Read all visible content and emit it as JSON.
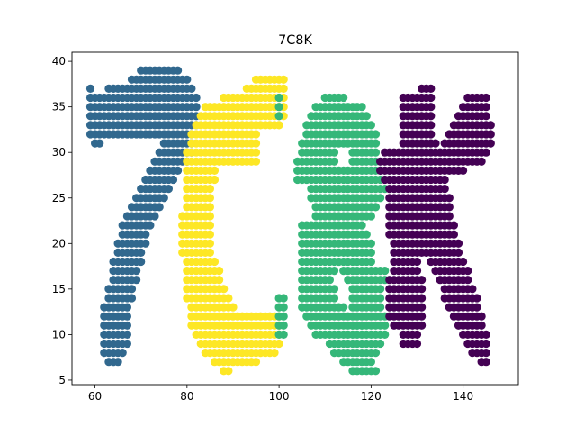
{
  "chart_data": {
    "type": "scatter",
    "title": "7C8K",
    "xlabel": "",
    "ylabel": "",
    "xlim": [
      55,
      152
    ],
    "ylim": [
      4.5,
      41
    ],
    "xticks": [
      60,
      80,
      100,
      120,
      140
    ],
    "yticks": [
      5,
      10,
      15,
      20,
      25,
      30,
      35,
      40
    ],
    "grid": false,
    "legend": "none",
    "series": [
      {
        "name": "7",
        "color": "#31688e",
        "rects": [
          [
            70,
            78,
            39,
            39
          ],
          [
            68,
            80,
            38,
            38
          ],
          [
            63,
            81,
            37,
            37
          ],
          [
            59,
            82,
            36,
            36
          ],
          [
            59,
            82,
            35,
            35
          ],
          [
            59,
            82,
            34,
            34
          ],
          [
            59,
            82,
            33,
            33
          ],
          [
            59,
            81,
            32,
            32
          ],
          [
            75,
            81,
            31,
            31
          ],
          [
            74,
            81,
            30,
            30
          ],
          [
            73,
            80,
            29,
            29
          ],
          [
            72,
            78,
            28,
            28
          ],
          [
            71,
            77,
            27,
            27
          ],
          [
            70,
            76,
            26,
            26
          ],
          [
            69,
            75,
            25,
            25
          ],
          [
            68,
            74,
            24,
            24
          ],
          [
            67,
            73,
            23,
            23
          ],
          [
            66,
            72,
            22,
            22
          ],
          [
            66,
            71,
            21,
            21
          ],
          [
            65,
            71,
            20,
            20
          ],
          [
            65,
            70,
            19,
            19
          ],
          [
            64,
            70,
            18,
            18
          ],
          [
            64,
            69,
            17,
            17
          ],
          [
            64,
            69,
            16,
            16
          ],
          [
            63,
            68,
            15,
            15
          ],
          [
            63,
            68,
            14,
            14
          ],
          [
            62,
            67,
            13,
            13
          ],
          [
            62,
            67,
            12,
            12
          ],
          [
            62,
            67,
            11,
            11
          ],
          [
            62,
            67,
            10,
            10
          ],
          [
            62,
            67,
            9,
            9
          ],
          [
            62,
            66,
            8,
            8
          ],
          [
            63,
            65,
            7,
            7
          ]
        ],
        "points": [
          [
            59,
            37
          ],
          [
            60,
            31
          ],
          [
            61,
            31
          ]
        ]
      },
      {
        "name": "C",
        "color": "#fde725",
        "rects": [
          [
            95,
            101,
            38,
            38
          ],
          [
            93,
            101,
            37,
            37
          ],
          [
            88,
            101,
            36,
            36
          ],
          [
            84,
            101,
            35,
            35
          ],
          [
            83,
            101,
            34,
            34
          ],
          [
            82,
            100,
            33,
            33
          ],
          [
            81,
            95,
            32,
            32
          ],
          [
            81,
            95,
            31,
            31
          ],
          [
            80,
            95,
            30,
            30
          ],
          [
            80,
            95,
            29,
            29
          ],
          [
            80,
            86,
            28,
            28
          ],
          [
            80,
            86,
            27,
            27
          ],
          [
            80,
            85,
            26,
            26
          ],
          [
            80,
            85,
            25,
            25
          ],
          [
            80,
            85,
            24,
            24
          ],
          [
            79,
            85,
            23,
            23
          ],
          [
            79,
            85,
            22,
            22
          ],
          [
            79,
            85,
            21,
            21
          ],
          [
            79,
            85,
            20,
            20
          ],
          [
            79,
            85,
            19,
            19
          ],
          [
            80,
            86,
            18,
            18
          ],
          [
            80,
            87,
            17,
            17
          ],
          [
            80,
            87,
            16,
            16
          ],
          [
            80,
            88,
            15,
            15
          ],
          [
            80,
            89,
            14,
            14
          ],
          [
            81,
            90,
            13,
            13
          ],
          [
            81,
            100,
            12,
            12
          ],
          [
            81,
            100,
            11,
            11
          ],
          [
            82,
            100,
            10,
            10
          ],
          [
            83,
            100,
            9,
            9
          ],
          [
            84,
            99,
            8,
            8
          ],
          [
            86,
            95,
            7,
            7
          ],
          [
            88,
            89,
            6,
            6
          ]
        ],
        "points": []
      },
      {
        "name": "8",
        "color": "#35b779",
        "rects": [
          [
            110,
            114,
            36,
            36
          ],
          [
            108,
            118,
            35,
            35
          ],
          [
            107,
            119,
            34,
            34
          ],
          [
            106,
            120,
            33,
            33
          ],
          [
            106,
            121,
            32,
            32
          ],
          [
            105,
            121,
            31,
            31
          ],
          [
            105,
            112,
            30,
            30
          ],
          [
            116,
            121,
            30,
            30
          ],
          [
            104,
            112,
            29,
            29
          ],
          [
            116,
            121,
            29,
            29
          ],
          [
            104,
            122,
            28,
            28
          ],
          [
            104,
            122,
            27,
            27
          ],
          [
            107,
            123,
            26,
            26
          ],
          [
            107,
            122,
            25,
            25
          ],
          [
            108,
            121,
            24,
            24
          ],
          [
            108,
            120,
            23,
            23
          ],
          [
            105,
            118,
            22,
            22
          ],
          [
            105,
            119,
            21,
            21
          ],
          [
            105,
            120,
            20,
            20
          ],
          [
            105,
            120,
            19,
            19
          ],
          [
            105,
            120,
            18,
            18
          ],
          [
            105,
            112,
            17,
            17
          ],
          [
            114,
            123,
            17,
            17
          ],
          [
            105,
            111,
            16,
            16
          ],
          [
            115,
            123,
            16,
            16
          ],
          [
            105,
            112,
            15,
            15
          ],
          [
            116,
            122,
            15,
            15
          ],
          [
            105,
            112,
            14,
            14
          ],
          [
            116,
            122,
            14,
            14
          ],
          [
            105,
            114,
            13,
            13
          ],
          [
            116,
            122,
            13,
            13
          ],
          [
            106,
            115,
            12,
            12
          ],
          [
            116,
            123,
            12,
            12
          ],
          [
            107,
            118,
            11,
            11
          ],
          [
            116,
            123,
            11,
            11
          ],
          [
            108,
            123,
            10,
            10
          ],
          [
            111,
            122,
            9,
            9
          ],
          [
            112,
            121,
            8,
            8
          ],
          [
            114,
            120,
            7,
            7
          ],
          [
            116,
            121,
            6,
            6
          ],
          [
            100,
            101,
            14,
            14
          ],
          [
            100,
            101,
            13,
            13
          ],
          [
            100,
            101,
            12,
            12
          ],
          [
            100,
            101,
            11,
            11
          ],
          [
            100,
            101,
            10,
            10
          ]
        ],
        "points": [
          [
            100,
            36
          ],
          [
            100,
            35
          ],
          [
            100,
            34
          ]
        ]
      },
      {
        "name": "K",
        "color": "#440154",
        "rects": [
          [
            131,
            133,
            37,
            37
          ],
          [
            127,
            133,
            36,
            36
          ],
          [
            141,
            145,
            36,
            36
          ],
          [
            127,
            133,
            35,
            35
          ],
          [
            140,
            145,
            35,
            35
          ],
          [
            127,
            133,
            34,
            34
          ],
          [
            139,
            145,
            34,
            34
          ],
          [
            127,
            133,
            33,
            33
          ],
          [
            138,
            146,
            33,
            33
          ],
          [
            127,
            133,
            32,
            32
          ],
          [
            137,
            146,
            32,
            32
          ],
          [
            127,
            134,
            31,
            31
          ],
          [
            136,
            146,
            31,
            31
          ],
          [
            123,
            145,
            30,
            30
          ],
          [
            122,
            144,
            29,
            29
          ],
          [
            122,
            140,
            28,
            28
          ],
          [
            123,
            136,
            27,
            27
          ],
          [
            124,
            136,
            26,
            26
          ],
          [
            124,
            137,
            25,
            25
          ],
          [
            124,
            137,
            24,
            24
          ],
          [
            124,
            137,
            23,
            23
          ],
          [
            124,
            138,
            22,
            22
          ],
          [
            124,
            138,
            21,
            21
          ],
          [
            125,
            139,
            20,
            20
          ],
          [
            125,
            139,
            19,
            19
          ],
          [
            125,
            130,
            18,
            18
          ],
          [
            133,
            140,
            18,
            18
          ],
          [
            125,
            130,
            17,
            17
          ],
          [
            134,
            141,
            17,
            17
          ],
          [
            124,
            131,
            16,
            16
          ],
          [
            135,
            141,
            16,
            16
          ],
          [
            124,
            131,
            15,
            15
          ],
          [
            136,
            142,
            15,
            15
          ],
          [
            124,
            131,
            14,
            14
          ],
          [
            136,
            143,
            14,
            14
          ],
          [
            124,
            131,
            13,
            13
          ],
          [
            137,
            143,
            13,
            13
          ],
          [
            124,
            131,
            12,
            12
          ],
          [
            138,
            144,
            12,
            12
          ],
          [
            125,
            131,
            11,
            11
          ],
          [
            139,
            144,
            11,
            11
          ],
          [
            127,
            130,
            10,
            10
          ],
          [
            140,
            145,
            10,
            10
          ],
          [
            127,
            130,
            9,
            9
          ],
          [
            141,
            145,
            9,
            9
          ],
          [
            142,
            145,
            8,
            8
          ],
          [
            144,
            145,
            7,
            7
          ]
        ],
        "points": []
      }
    ]
  }
}
